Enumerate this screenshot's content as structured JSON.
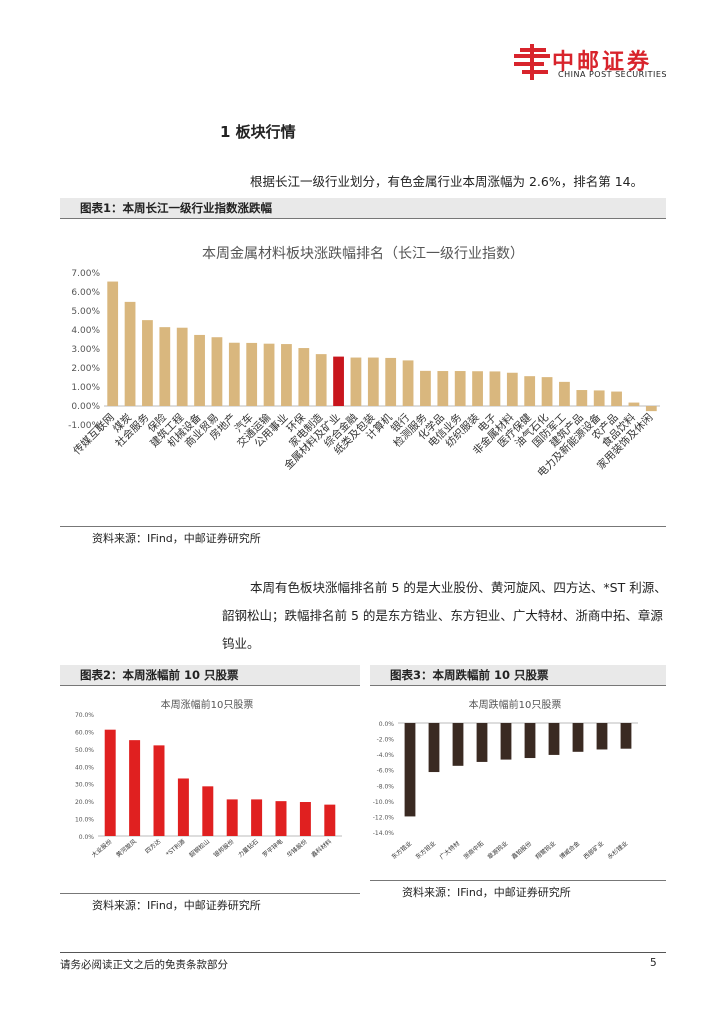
{
  "header": {
    "brand_cn": "中邮证券",
    "brand_en": "CHINA POST SECURITIES",
    "colors": {
      "brand_red": "#d8242c"
    }
  },
  "section": {
    "title": "1  板块行情"
  },
  "paragraph1": "根据长江一级行业划分，有色金属行业本周涨幅为 2.6%，排名第 14。",
  "figure1": {
    "label": "图表1：本周长江一级行业指数涨跌幅",
    "source": "资料来源：IFind，中邮证券研究所"
  },
  "paragraph2": {
    "line1": "本周有色板块涨幅排名前 5 的是大业股份、黄河旋风、四方达、*ST 利源、",
    "line2": "韶钢松山；跌幅排名前 5 的是东方锆业、东方钽业、广大特材、浙商中拓、章源",
    "line3": "钨业。"
  },
  "figure2": {
    "label": "图表2：本周涨幅前 10 只股票"
  },
  "figure3": {
    "label": "图表3：本周跌幅前 10 只股票"
  },
  "figure2_source": "资料来源：IFind，中邮证券研究所",
  "figure3_source": "资料来源：IFind，中邮证券研究所",
  "footer": {
    "text": "请务必阅读正文之后的免责条款部分",
    "page": "5"
  },
  "chart_data": [
    {
      "type": "bar",
      "title": "本周金属材料板块涨跌幅排名（长江一级行业指数）",
      "categories": [
        "传媒互联网",
        "煤炭",
        "社会服务",
        "保险",
        "建筑工程",
        "机械设备",
        "商业贸易",
        "房地产",
        "汽车",
        "交通运输",
        "公用事业",
        "环保",
        "家电制造",
        "金属材料及矿业",
        "综合金融",
        "纸类及包装",
        "计算机",
        "银行",
        "检测服务",
        "化学品",
        "电信业务",
        "纺织服装",
        "电子",
        "非金属材料",
        "医疗保健",
        "油气石化",
        "国防军工",
        "建筑产品",
        "电力及新能源设备",
        "农产品",
        "食品饮料",
        "家用装饰及休闲"
      ],
      "values": [
        6.55,
        5.48,
        4.52,
        4.15,
        4.12,
        3.74,
        3.62,
        3.33,
        3.32,
        3.28,
        3.26,
        3.05,
        2.73,
        2.6,
        2.55,
        2.55,
        2.53,
        2.4,
        1.85,
        1.84,
        1.84,
        1.83,
        1.82,
        1.75,
        1.57,
        1.52,
        1.27,
        0.84,
        0.82,
        0.76,
        0.18,
        -0.27
      ],
      "yticks": [
        "7.00%",
        "6.00%",
        "5.00%",
        "4.00%",
        "3.00%",
        "2.00%",
        "1.00%",
        "0.00%",
        "-1.00%"
      ],
      "ylim": [
        -1,
        7
      ],
      "highlight_index": 13,
      "colors": {
        "bar": "#d9b77e",
        "highlight": "#c8161d"
      }
    },
    {
      "type": "bar",
      "title": "本周涨幅前10只股票",
      "categories": [
        "大业股份",
        "黄河旋风",
        "四方达",
        "*ST利源",
        "韶钢松山",
        "银邦股份",
        "力量钻石",
        "罗平锌电",
        "华锋股份",
        "鑫科材料"
      ],
      "values": [
        61.0,
        55.0,
        52.0,
        33.0,
        28.5,
        21.0,
        21.0,
        20.0,
        19.5,
        18.0
      ],
      "yticks": [
        "70.0%",
        "60.0%",
        "50.0%",
        "40.0%",
        "30.0%",
        "20.0%",
        "10.0%",
        "0.0%"
      ],
      "ylim": [
        0,
        70
      ],
      "colors": {
        "bar": "#e02020"
      }
    },
    {
      "type": "bar",
      "title": "本周跌幅前10只股票",
      "categories": [
        "东方锆业",
        "东方钽业",
        "广大特材",
        "浙商中拓",
        "章源钨业",
        "鑫铂股份",
        "翔鹭钨业",
        "博威合金",
        "西部矿业",
        "永杉锂业"
      ],
      "values": [
        -12.0,
        -6.3,
        -5.5,
        -5.0,
        -4.7,
        -4.5,
        -4.1,
        -3.7,
        -3.4,
        -3.3
      ],
      "yticks": [
        "0.0%",
        "-2.0%",
        "-4.0%",
        "-6.0%",
        "-8.0%",
        "-10.0%",
        "-12.0%",
        "-14.0%"
      ],
      "ylim": [
        -14,
        0
      ],
      "colors": {
        "bar": "#3a2a22"
      }
    }
  ]
}
